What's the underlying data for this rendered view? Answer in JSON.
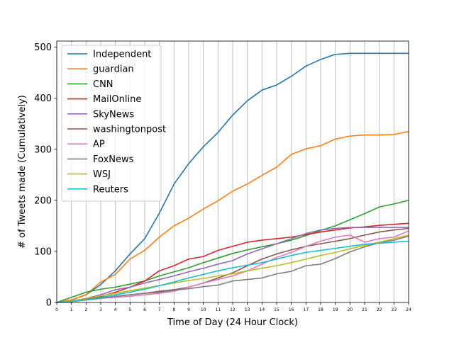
{
  "chart_data": {
    "type": "line",
    "xlabel": "Time of Day (24 Hour Clock)",
    "ylabel": "# of Tweets made (Cumulatively)",
    "xlim": [
      0,
      24
    ],
    "ylim": [
      0,
      512
    ],
    "x_ticks": [
      0,
      1,
      2,
      3,
      4,
      5,
      6,
      7,
      8,
      9,
      10,
      11,
      12,
      13,
      14,
      15,
      16,
      17,
      18,
      19,
      20,
      21,
      22,
      23,
      24
    ],
    "y_ticks": [
      0,
      100,
      200,
      300,
      400,
      500
    ],
    "grid": "vertical",
    "legend_position": "top-left",
    "x": [
      0,
      1,
      2,
      3,
      4,
      5,
      6,
      7,
      8,
      9,
      10,
      11,
      12,
      13,
      14,
      15,
      16,
      17,
      18,
      19,
      20,
      21,
      22,
      23,
      24
    ],
    "series": [
      {
        "name": "Independent",
        "color": "#1f77b4",
        "values": [
          0,
          5,
          15,
          35,
          62,
          95,
          125,
          175,
          232,
          272,
          305,
          333,
          367,
          395,
          416,
          426,
          443,
          463,
          476,
          486,
          488,
          488,
          488,
          488,
          488
        ]
      },
      {
        "name": "guardian",
        "color": "#ff7f0e",
        "values": [
          0,
          5,
          15,
          40,
          55,
          85,
          102,
          128,
          150,
          165,
          183,
          199,
          218,
          232,
          249,
          265,
          290,
          301,
          307,
          320,
          326,
          328,
          328,
          329,
          335
        ]
      },
      {
        "name": "CNN",
        "color": "#2ca02c",
        "values": [
          0,
          10,
          20,
          26,
          30,
          36,
          42,
          52,
          60,
          68,
          78,
          87,
          96,
          103,
          109,
          115,
          122,
          131,
          141,
          150,
          162,
          174,
          187,
          193,
          200
        ]
      },
      {
        "name": "MailOnline",
        "color": "#d62728",
        "values": [
          0,
          2,
          6,
          12,
          20,
          30,
          42,
          62,
          72,
          85,
          90,
          102,
          110,
          118,
          122,
          125,
          128,
          133,
          138,
          142,
          146,
          148,
          151,
          153,
          155
        ]
      },
      {
        "name": "SkyNews",
        "color": "#9467bd",
        "values": [
          0,
          3,
          8,
          15,
          25,
          30,
          38,
          45,
          52,
          60,
          67,
          75,
          82,
          95,
          105,
          115,
          125,
          135,
          142,
          145,
          147,
          147,
          147,
          147,
          147
        ]
      },
      {
        "name": "washingtonpost",
        "color": "#8c564b",
        "values": [
          0,
          2,
          5,
          8,
          12,
          15,
          18,
          22,
          25,
          30,
          38,
          48,
          58,
          72,
          85,
          95,
          103,
          110,
          115,
          120,
          125,
          132,
          138,
          142,
          145
        ]
      },
      {
        "name": "AP",
        "color": "#e377c2",
        "values": [
          0,
          2,
          5,
          8,
          10,
          12,
          15,
          18,
          22,
          30,
          38,
          45,
          52,
          62,
          75,
          88,
          98,
          110,
          120,
          128,
          132,
          118,
          125,
          128,
          140
        ]
      },
      {
        "name": "FoxNews",
        "color": "#7f7f7f",
        "values": [
          0,
          2,
          5,
          8,
          12,
          15,
          18,
          20,
          24,
          27,
          31,
          34,
          42,
          45,
          48,
          56,
          61,
          72,
          75,
          86,
          99,
          109,
          117,
          122,
          130
        ]
      },
      {
        "name": "WSJ",
        "color": "#bcbd22",
        "values": [
          0,
          3,
          8,
          13,
          18,
          23,
          28,
          33,
          38,
          43,
          47,
          52,
          56,
          62,
          67,
          72,
          78,
          85,
          92,
          98,
          105,
          112,
          118,
          125,
          132
        ]
      },
      {
        "name": "Reuters",
        "color": "#17becf",
        "values": [
          0,
          2,
          5,
          10,
          15,
          20,
          26,
          33,
          40,
          48,
          55,
          62,
          68,
          73,
          78,
          85,
          92,
          98,
          102,
          106,
          110,
          114,
          116,
          118,
          120
        ]
      }
    ]
  }
}
